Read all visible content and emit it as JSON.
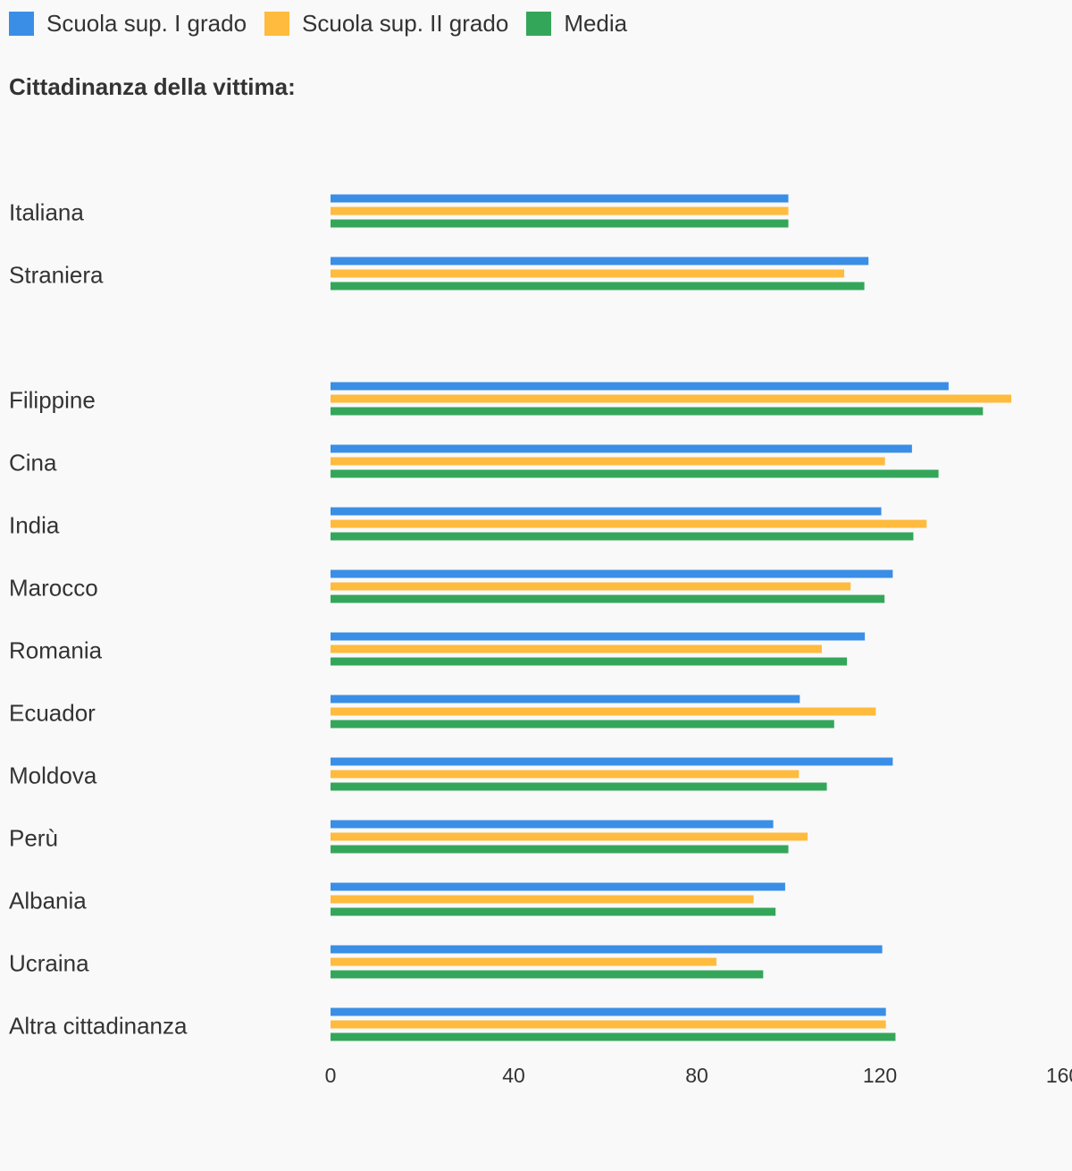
{
  "chart_data": {
    "type": "bar",
    "orientation": "horizontal",
    "title": "Cittadinanza della vittima:",
    "groups": [
      {
        "categories": [
          "Italiana",
          "Straniera"
        ]
      },
      {
        "categories": [
          "Filippine",
          "Cina",
          "India",
          "Marocco",
          "Romania",
          "Ecuador",
          "Moldova",
          "Perù",
          "Albania",
          "Ucraina",
          "Altra cittadinanza"
        ]
      }
    ],
    "categories": [
      "Italiana",
      "Straniera",
      "Filippine",
      "Cina",
      "India",
      "Marocco",
      "Romania",
      "Ecuador",
      "Moldova",
      "Perù",
      "Albania",
      "Ucraina",
      "Altra cittadinanza"
    ],
    "series": [
      {
        "name": "Scuola sup. I grado",
        "color": "#3a8ee6",
        "values": [
          100,
          117.5,
          135,
          127,
          120.3,
          122.8,
          116.7,
          102.5,
          122.8,
          96.7,
          99.3,
          120.5,
          121.3
        ]
      },
      {
        "name": "Scuola sup. II grado",
        "color": "#ffbb3d",
        "values": [
          100,
          112.2,
          148.7,
          121.1,
          130.2,
          113.6,
          107.3,
          119.1,
          102.3,
          104.2,
          92.4,
          84.3,
          121.3
        ]
      },
      {
        "name": "Media",
        "color": "#34a65a",
        "values": [
          100,
          116.6,
          142.5,
          132.8,
          127.3,
          121,
          112.8,
          110,
          108.4,
          100,
          97.2,
          94.5,
          123.4
        ]
      }
    ],
    "xaxis": {
      "ticks": [
        "0",
        "40",
        "80",
        "120",
        "160"
      ],
      "min": 0,
      "max": 160
    },
    "grid": false,
    "legend": "top-left"
  }
}
